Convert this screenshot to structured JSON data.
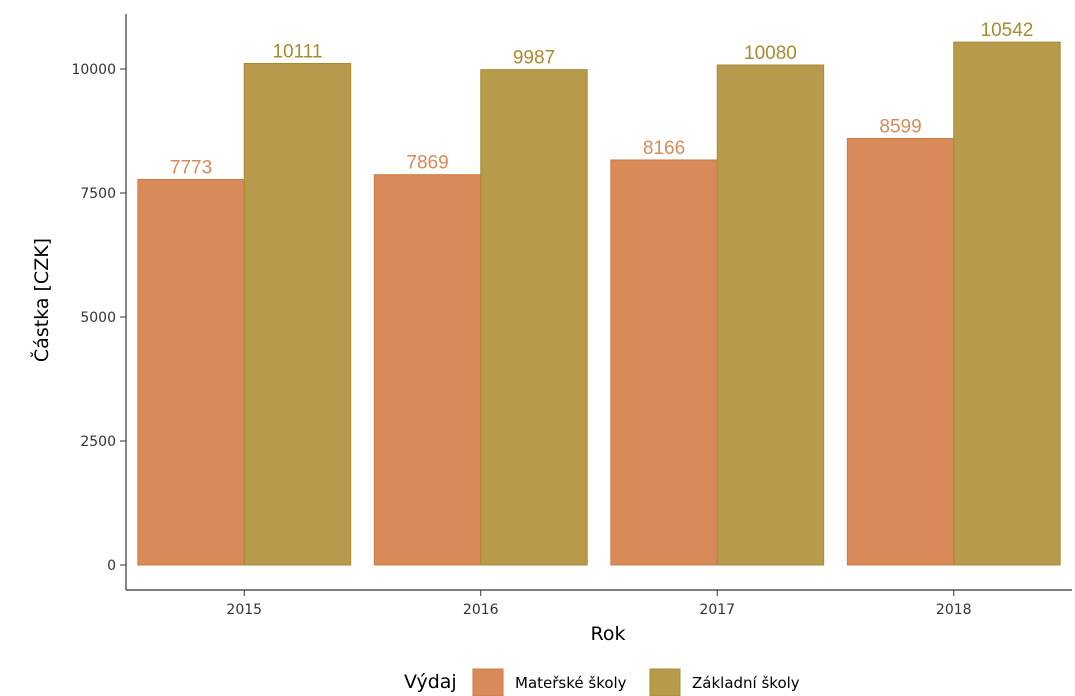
{
  "chart_data": {
    "type": "bar",
    "categories": [
      "2015",
      "2016",
      "2017",
      "2018"
    ],
    "series": [
      {
        "name": "Mateřské školy",
        "values": [
          7773,
          7869,
          8166,
          8599
        ],
        "color": "#d98a59",
        "border": "#c87c44",
        "label_color": "#d98a59"
      },
      {
        "name": "Základní školy",
        "values": [
          10111,
          9987,
          10080,
          10542
        ],
        "color": "#b79a4c",
        "border": "#a88a2f",
        "label_color": "#a88a2f"
      }
    ],
    "xlabel": "Rok",
    "ylabel": "Částka [CZK]",
    "ylim": [
      -400,
      11000
    ],
    "yticks": [
      0,
      2500,
      5000,
      7500,
      10000
    ],
    "ytick_labels": [
      "0",
      "2500",
      "5000",
      "7500",
      "10000"
    ],
    "grid": false,
    "legend_title": "Výdaj",
    "legend_placement": "bottom"
  }
}
